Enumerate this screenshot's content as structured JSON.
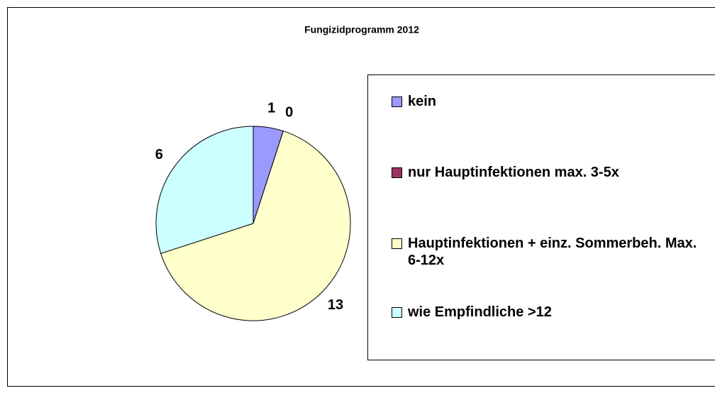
{
  "chart_data": {
    "type": "pie",
    "title": "Fungizidprogramm 2012",
    "categories": [
      "kein",
      "nur Hauptinfektionen max. 3-5x",
      "Hauptinfektionen + einz. Sommerbeh. Max. 6-12x",
      "wie Empfindliche >12"
    ],
    "values": [
      1,
      0,
      13,
      6
    ],
    "colors": [
      "#9999ff",
      "#993366",
      "#ffffcc",
      "#ccffff"
    ],
    "legend": "right"
  }
}
